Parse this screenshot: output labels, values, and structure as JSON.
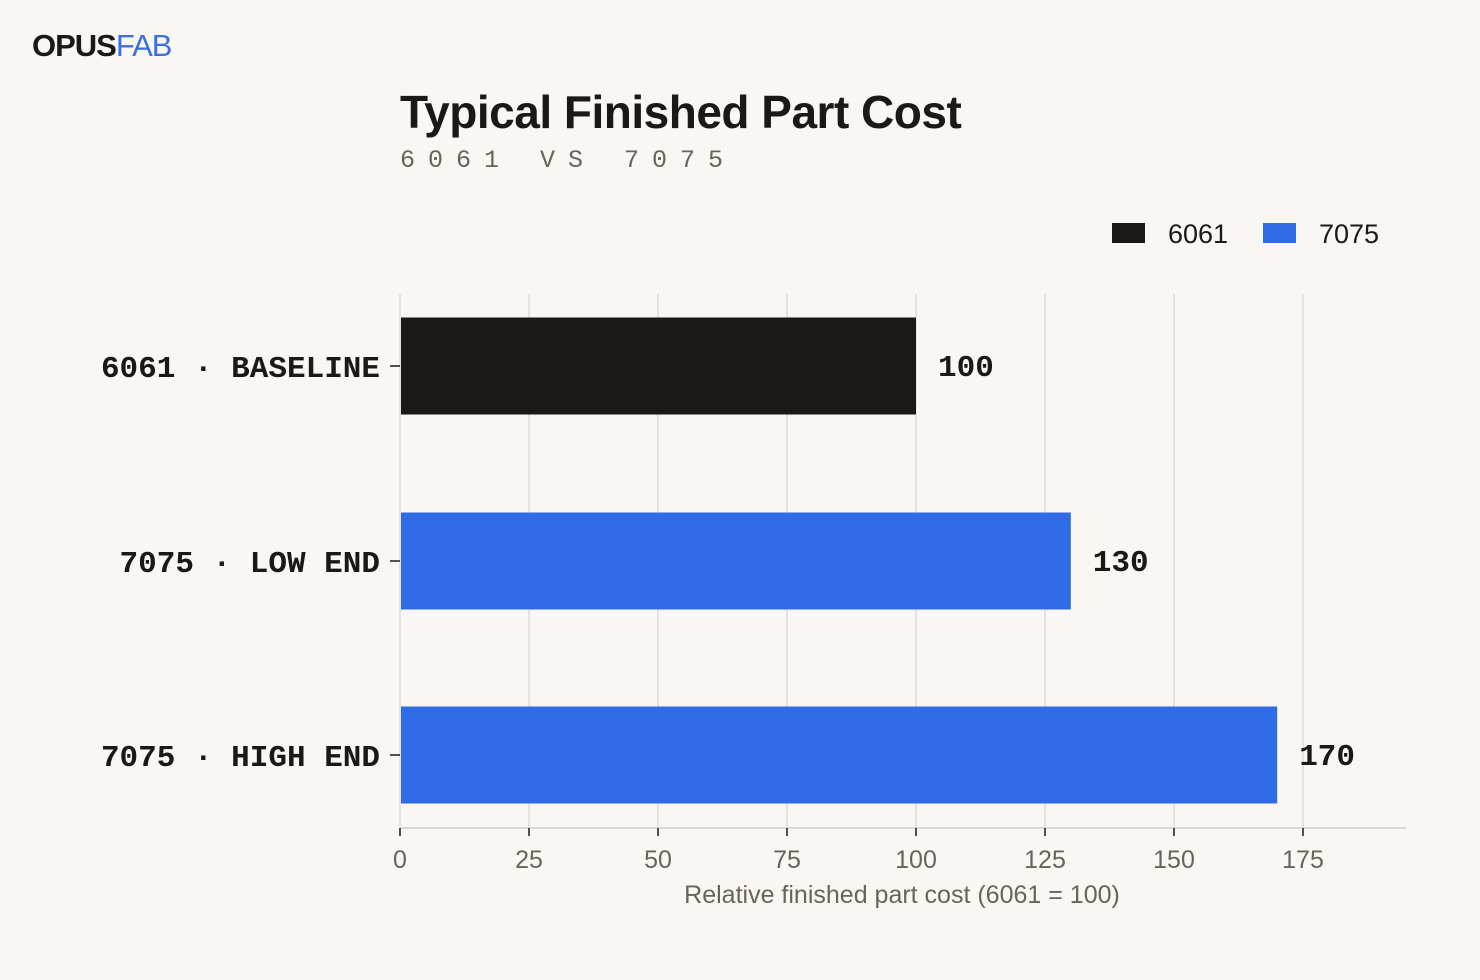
{
  "brand": {
    "part1": "OPUS",
    "part2": "FAB"
  },
  "colors": {
    "background": "#f9f7f3",
    "baseline": "#1b1816",
    "accent": "#2f6be6",
    "grid": "#e6e3dc",
    "muted": "#6b6259"
  },
  "chart_data": {
    "type": "bar",
    "orientation": "horizontal",
    "title": "Typical Finished Part Cost",
    "subtitle": "6061 VS 7075",
    "xlabel": "Relative finished part cost  (6061 = 100)",
    "ylabel": "",
    "xlim": [
      0,
      190
    ],
    "xticks": [
      0,
      25,
      50,
      75,
      100,
      125,
      150,
      175
    ],
    "grid": true,
    "legend_position": "top-right",
    "legend": [
      {
        "label": "6061",
        "color": "#1b1816"
      },
      {
        "label": "7075",
        "color": "#2f6be6"
      }
    ],
    "categories": [
      "6061 · BASELINE",
      "7075 · LOW END",
      "7075 · HIGH END"
    ],
    "values": [
      100,
      130,
      170
    ],
    "bar_series": [
      "6061",
      "7075",
      "7075"
    ]
  }
}
